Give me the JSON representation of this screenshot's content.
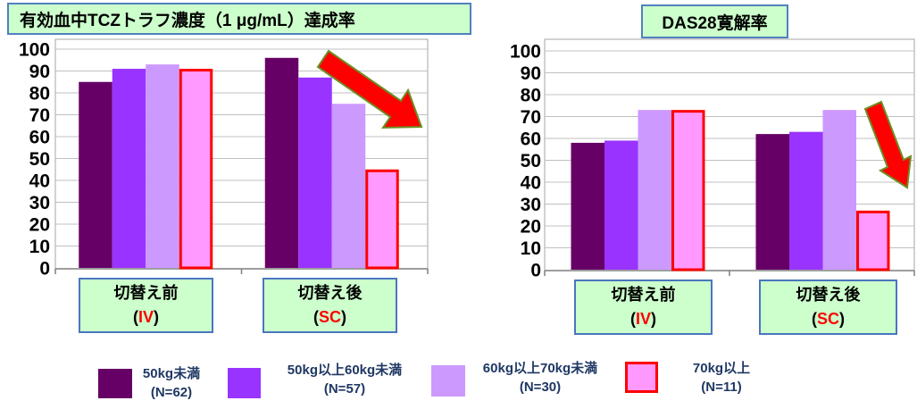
{
  "chart_data": [
    {
      "type": "bar",
      "title": "有効血中TCZトラフ濃度（1 μg/mL）達成率",
      "categories": [
        "切替え前",
        "切替え後"
      ],
      "category_routes": [
        "IV",
        "SC"
      ],
      "route_brackets": [
        "(",
        ")"
      ],
      "ylim": [
        0,
        100
      ],
      "yticks": [
        0,
        10,
        20,
        30,
        40,
        50,
        60,
        70,
        80,
        90,
        100
      ],
      "grid": true,
      "series": [
        {
          "name": "50kg未満",
          "color": "#660066",
          "values": [
            85,
            96
          ]
        },
        {
          "name": "50kg以上60kg未満",
          "color": "#9933ff",
          "values": [
            91,
            87
          ]
        },
        {
          "name": "60kg以上70kg未満",
          "color": "#cc99ff",
          "values": [
            93,
            75
          ]
        },
        {
          "name": "70kg以上",
          "color": "#ff99ff",
          "border_color": "#ff0000",
          "values": [
            91,
            45
          ]
        }
      ]
    },
    {
      "type": "bar",
      "title": "DAS28寛解率",
      "categories": [
        "切替え前",
        "切替え後"
      ],
      "category_routes": [
        "IV",
        "SC"
      ],
      "route_brackets": [
        "(",
        ")"
      ],
      "ylim": [
        0,
        100
      ],
      "yticks": [
        0,
        10,
        20,
        30,
        40,
        50,
        60,
        70,
        80,
        90,
        100
      ],
      "grid": true,
      "series": [
        {
          "name": "50kg未満",
          "color": "#660066",
          "values": [
            58,
            62
          ]
        },
        {
          "name": "50kg以上60kg未満",
          "color": "#9933ff",
          "values": [
            59,
            63
          ]
        },
        {
          "name": "60kg以上70kg未満",
          "color": "#cc99ff",
          "values": [
            73,
            73
          ]
        },
        {
          "name": "70kg以上",
          "color": "#ff99ff",
          "border_color": "#ff0000",
          "values": [
            73,
            27
          ]
        }
      ]
    }
  ],
  "legend": {
    "position": "bottom",
    "items": [
      {
        "name": "50kg未満",
        "count": "(N=62)",
        "color": "#660066"
      },
      {
        "name": "50kg以上60kg未満",
        "count": "(N=57)",
        "color": "#9933ff"
      },
      {
        "name": "60kg以上70kg未満",
        "count": "(N=30)",
        "color": "#cc99ff"
      },
      {
        "name": "70kg以上",
        "count": "(N=11)",
        "color": "#ff99ff",
        "border_color": "#ff0000"
      }
    ]
  }
}
